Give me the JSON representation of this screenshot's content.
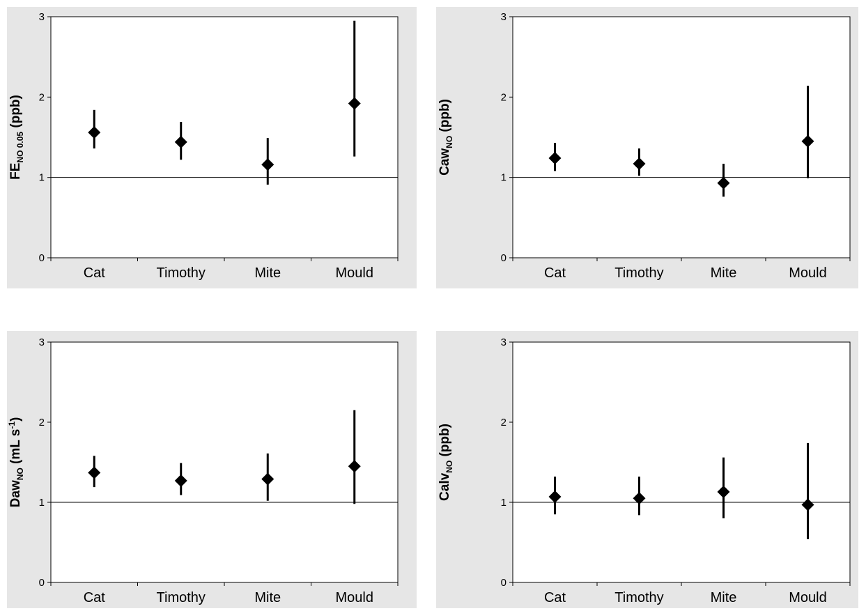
{
  "chart_data": [
    {
      "type": "scatter",
      "ylabel": {
        "main": "FE",
        "sub": "NO 0.05",
        "sup": "",
        "rest": " (ppb)"
      },
      "categories": [
        "Cat",
        "Timothy",
        "Mite",
        "Mould"
      ],
      "values": [
        1.56,
        1.44,
        1.16,
        1.92
      ],
      "lower": [
        1.36,
        1.22,
        0.91,
        1.26
      ],
      "upper": [
        1.84,
        1.69,
        1.49,
        2.95
      ],
      "ylim": [
        0,
        3
      ],
      "yticks": [
        "0",
        "1",
        "2",
        "3"
      ],
      "reference_line": 1
    },
    {
      "type": "scatter",
      "ylabel": {
        "main": "Caw",
        "sub": "NO",
        "sup": "",
        "rest": " (ppb)"
      },
      "categories": [
        "Cat",
        "Timothy",
        "Mite",
        "Mould"
      ],
      "values": [
        1.24,
        1.17,
        0.93,
        1.45
      ],
      "lower": [
        1.08,
        1.02,
        0.76,
        0.99
      ],
      "upper": [
        1.43,
        1.36,
        1.17,
        2.14
      ],
      "ylim": [
        0,
        3
      ],
      "yticks": [
        "0",
        "1",
        "2",
        "3"
      ],
      "reference_line": 1
    },
    {
      "type": "scatter",
      "ylabel": {
        "main": "Daw",
        "sub": "NO",
        "sup": "-1",
        "rest": " (mL s",
        "close": ")"
      },
      "categories": [
        "Cat",
        "Timothy",
        "Mite",
        "Mould"
      ],
      "values": [
        1.37,
        1.27,
        1.29,
        1.45
      ],
      "lower": [
        1.19,
        1.09,
        1.02,
        0.98
      ],
      "upper": [
        1.58,
        1.49,
        1.61,
        2.15
      ],
      "ylim": [
        0,
        3
      ],
      "yticks": [
        "0",
        "1",
        "2",
        "3"
      ],
      "reference_line": 1
    },
    {
      "type": "scatter",
      "ylabel": {
        "main": "Calv",
        "sub": "NO",
        "sup": "",
        "rest": " (ppb)"
      },
      "categories": [
        "Cat",
        "Timothy",
        "Mite",
        "Mould"
      ],
      "values": [
        1.07,
        1.05,
        1.13,
        0.97
      ],
      "lower": [
        0.85,
        0.84,
        0.8,
        0.54
      ],
      "upper": [
        1.32,
        1.32,
        1.56,
        1.74
      ],
      "ylim": [
        0,
        3
      ],
      "yticks": [
        "0",
        "1",
        "2",
        "3"
      ],
      "reference_line": 1
    }
  ]
}
